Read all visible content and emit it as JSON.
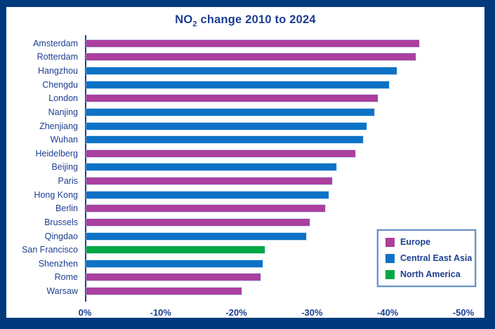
{
  "window": {
    "frame_color": "#003a7c",
    "background": "#ffffff",
    "text_color": "#1d3e91",
    "axis_line_color": "#1d3e91",
    "legend_border_color": "#6d91c4"
  },
  "chart_data": {
    "type": "bar",
    "orientation": "horizontal",
    "title": {
      "base": "NO",
      "subscript": "2",
      "rest": " change 2010 to 2024"
    },
    "xlabel": "",
    "ylabel": "",
    "grid": false,
    "x_axis": {
      "min": 0,
      "max": -50,
      "unit": "%",
      "ticks": [
        "0%",
        "-10%",
        "-20%",
        "-30%",
        "-40%",
        "-50%"
      ]
    },
    "legend": {
      "position": "bottom-right",
      "items": [
        {
          "label": "Europe",
          "region": "europe",
          "color": "#ab3f9e"
        },
        {
          "label": "Central East Asia",
          "region": "central_east_asia",
          "color": "#0d72c6"
        },
        {
          "label": "North America",
          "region": "north_america",
          "color": "#00a845"
        }
      ]
    },
    "cities": [
      {
        "name": "Amsterdam",
        "region": "europe",
        "value": -44.0
      },
      {
        "name": "Rotterdam",
        "region": "europe",
        "value": -43.5
      },
      {
        "name": "Hangzhou",
        "region": "central_east_asia",
        "value": -41.0
      },
      {
        "name": "Chengdu",
        "region": "central_east_asia",
        "value": -40.0
      },
      {
        "name": "London",
        "region": "europe",
        "value": -38.5
      },
      {
        "name": "Nanjing",
        "region": "central_east_asia",
        "value": -38.0
      },
      {
        "name": "Zhenjiang",
        "region": "central_east_asia",
        "value": -37.0
      },
      {
        "name": "Wuhan",
        "region": "central_east_asia",
        "value": -36.5
      },
      {
        "name": "Heidelberg",
        "region": "europe",
        "value": -35.5
      },
      {
        "name": "Beijing",
        "region": "central_east_asia",
        "value": -33.0
      },
      {
        "name": "Paris",
        "region": "europe",
        "value": -32.5
      },
      {
        "name": "Hong Kong",
        "region": "central_east_asia",
        "value": -32.0
      },
      {
        "name": "Berlin",
        "region": "europe",
        "value": -31.5
      },
      {
        "name": "Brussels",
        "region": "europe",
        "value": -29.5
      },
      {
        "name": "Qingdao",
        "region": "central_east_asia",
        "value": -29.0
      },
      {
        "name": "San Francisco",
        "region": "north_america",
        "value": -23.6
      },
      {
        "name": "Shenzhen",
        "region": "central_east_asia",
        "value": -23.3
      },
      {
        "name": "Rome",
        "region": "europe",
        "value": -23.0
      },
      {
        "name": "Warsaw",
        "region": "europe",
        "value": -20.5
      }
    ]
  }
}
